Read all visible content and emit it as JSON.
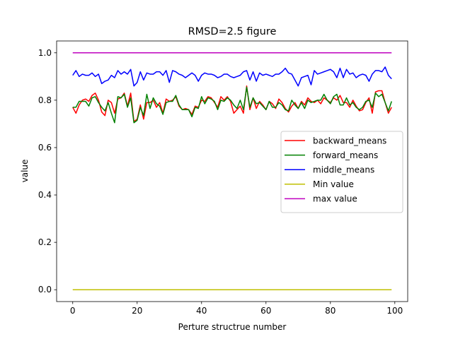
{
  "chart_data": {
    "type": "line",
    "title": "RMSD=2.5 figure",
    "xlabel": "Perture structrue number",
    "ylabel": "value",
    "xlim": [
      -5,
      104
    ],
    "ylim": [
      -0.05,
      1.05
    ],
    "xticks": [
      0,
      20,
      40,
      60,
      80,
      100
    ],
    "yticks": [
      0.0,
      0.2,
      0.4,
      0.6,
      0.8,
      1.0
    ],
    "ytick_labels": [
      "0.0",
      "0.2",
      "0.4",
      "0.6",
      "0.8",
      "1.0"
    ],
    "legend_position": "center-right",
    "x_start": 0,
    "series": [
      {
        "name": "backward_means",
        "color": "#ff0000",
        "values": [
          0.77,
          0.745,
          0.78,
          0.8,
          0.805,
          0.795,
          0.82,
          0.83,
          0.8,
          0.75,
          0.735,
          0.8,
          0.79,
          0.745,
          0.805,
          0.81,
          0.83,
          0.775,
          0.83,
          0.71,
          0.72,
          0.78,
          0.72,
          0.79,
          0.79,
          0.8,
          0.77,
          0.79,
          0.745,
          0.805,
          0.795,
          0.8,
          0.815,
          0.775,
          0.76,
          0.765,
          0.76,
          0.74,
          0.775,
          0.77,
          0.8,
          0.795,
          0.815,
          0.81,
          0.79,
          0.77,
          0.815,
          0.8,
          0.815,
          0.795,
          0.745,
          0.76,
          0.775,
          0.745,
          0.86,
          0.76,
          0.81,
          0.765,
          0.795,
          0.78,
          0.76,
          0.795,
          0.785,
          0.765,
          0.805,
          0.79,
          0.765,
          0.75,
          0.775,
          0.79,
          0.765,
          0.795,
          0.78,
          0.81,
          0.795,
          0.79,
          0.8,
          0.785,
          0.81,
          0.8,
          0.79,
          0.81,
          0.8,
          0.82,
          0.79,
          0.79,
          0.77,
          0.8,
          0.775,
          0.755,
          0.76,
          0.79,
          0.81,
          0.745,
          0.835,
          0.84,
          0.84,
          0.79,
          0.745,
          0.77
        ]
      },
      {
        "name": "forward_means",
        "color": "#008000",
        "values": [
          0.77,
          0.77,
          0.795,
          0.795,
          0.795,
          0.775,
          0.81,
          0.815,
          0.79,
          0.77,
          0.755,
          0.79,
          0.745,
          0.705,
          0.815,
          0.81,
          0.825,
          0.77,
          0.81,
          0.705,
          0.715,
          0.77,
          0.735,
          0.825,
          0.765,
          0.81,
          0.785,
          0.775,
          0.74,
          0.79,
          0.795,
          0.795,
          0.82,
          0.78,
          0.76,
          0.76,
          0.76,
          0.73,
          0.77,
          0.765,
          0.815,
          0.785,
          0.81,
          0.805,
          0.795,
          0.76,
          0.8,
          0.795,
          0.81,
          0.8,
          0.78,
          0.765,
          0.8,
          0.76,
          0.855,
          0.77,
          0.81,
          0.785,
          0.79,
          0.775,
          0.76,
          0.795,
          0.77,
          0.77,
          0.79,
          0.78,
          0.76,
          0.755,
          0.8,
          0.78,
          0.765,
          0.79,
          0.765,
          0.8,
          0.79,
          0.795,
          0.8,
          0.8,
          0.825,
          0.8,
          0.785,
          0.815,
          0.825,
          0.78,
          0.78,
          0.81,
          0.78,
          0.79,
          0.77,
          0.76,
          0.77,
          0.795,
          0.8,
          0.77,
          0.83,
          0.815,
          0.825,
          0.79,
          0.755,
          0.795
        ]
      },
      {
        "name": "middle_means",
        "color": "#0000ff",
        "values": [
          0.905,
          0.925,
          0.9,
          0.91,
          0.905,
          0.905,
          0.915,
          0.9,
          0.91,
          0.87,
          0.88,
          0.885,
          0.905,
          0.895,
          0.925,
          0.91,
          0.92,
          0.91,
          0.93,
          0.86,
          0.875,
          0.92,
          0.885,
          0.915,
          0.91,
          0.91,
          0.92,
          0.92,
          0.905,
          0.925,
          0.875,
          0.925,
          0.92,
          0.91,
          0.905,
          0.895,
          0.905,
          0.915,
          0.905,
          0.88,
          0.905,
          0.915,
          0.91,
          0.91,
          0.905,
          0.895,
          0.9,
          0.91,
          0.91,
          0.9,
          0.895,
          0.9,
          0.905,
          0.92,
          0.925,
          0.885,
          0.92,
          0.88,
          0.915,
          0.905,
          0.91,
          0.905,
          0.9,
          0.91,
          0.91,
          0.92,
          0.935,
          0.915,
          0.91,
          0.885,
          0.86,
          0.895,
          0.9,
          0.905,
          0.865,
          0.925,
          0.91,
          0.915,
          0.92,
          0.925,
          0.93,
          0.92,
          0.895,
          0.935,
          0.895,
          0.93,
          0.91,
          0.915,
          0.895,
          0.905,
          0.91,
          0.905,
          0.88,
          0.91,
          0.925,
          0.925,
          0.92,
          0.94,
          0.905,
          0.89
        ]
      },
      {
        "name": "Min value",
        "color": "#bfbf00",
        "values": [
          0.0,
          0.0
        ]
      },
      {
        "name": "max value",
        "color": "#bf00bf",
        "values": [
          1.0,
          1.0
        ]
      }
    ]
  }
}
